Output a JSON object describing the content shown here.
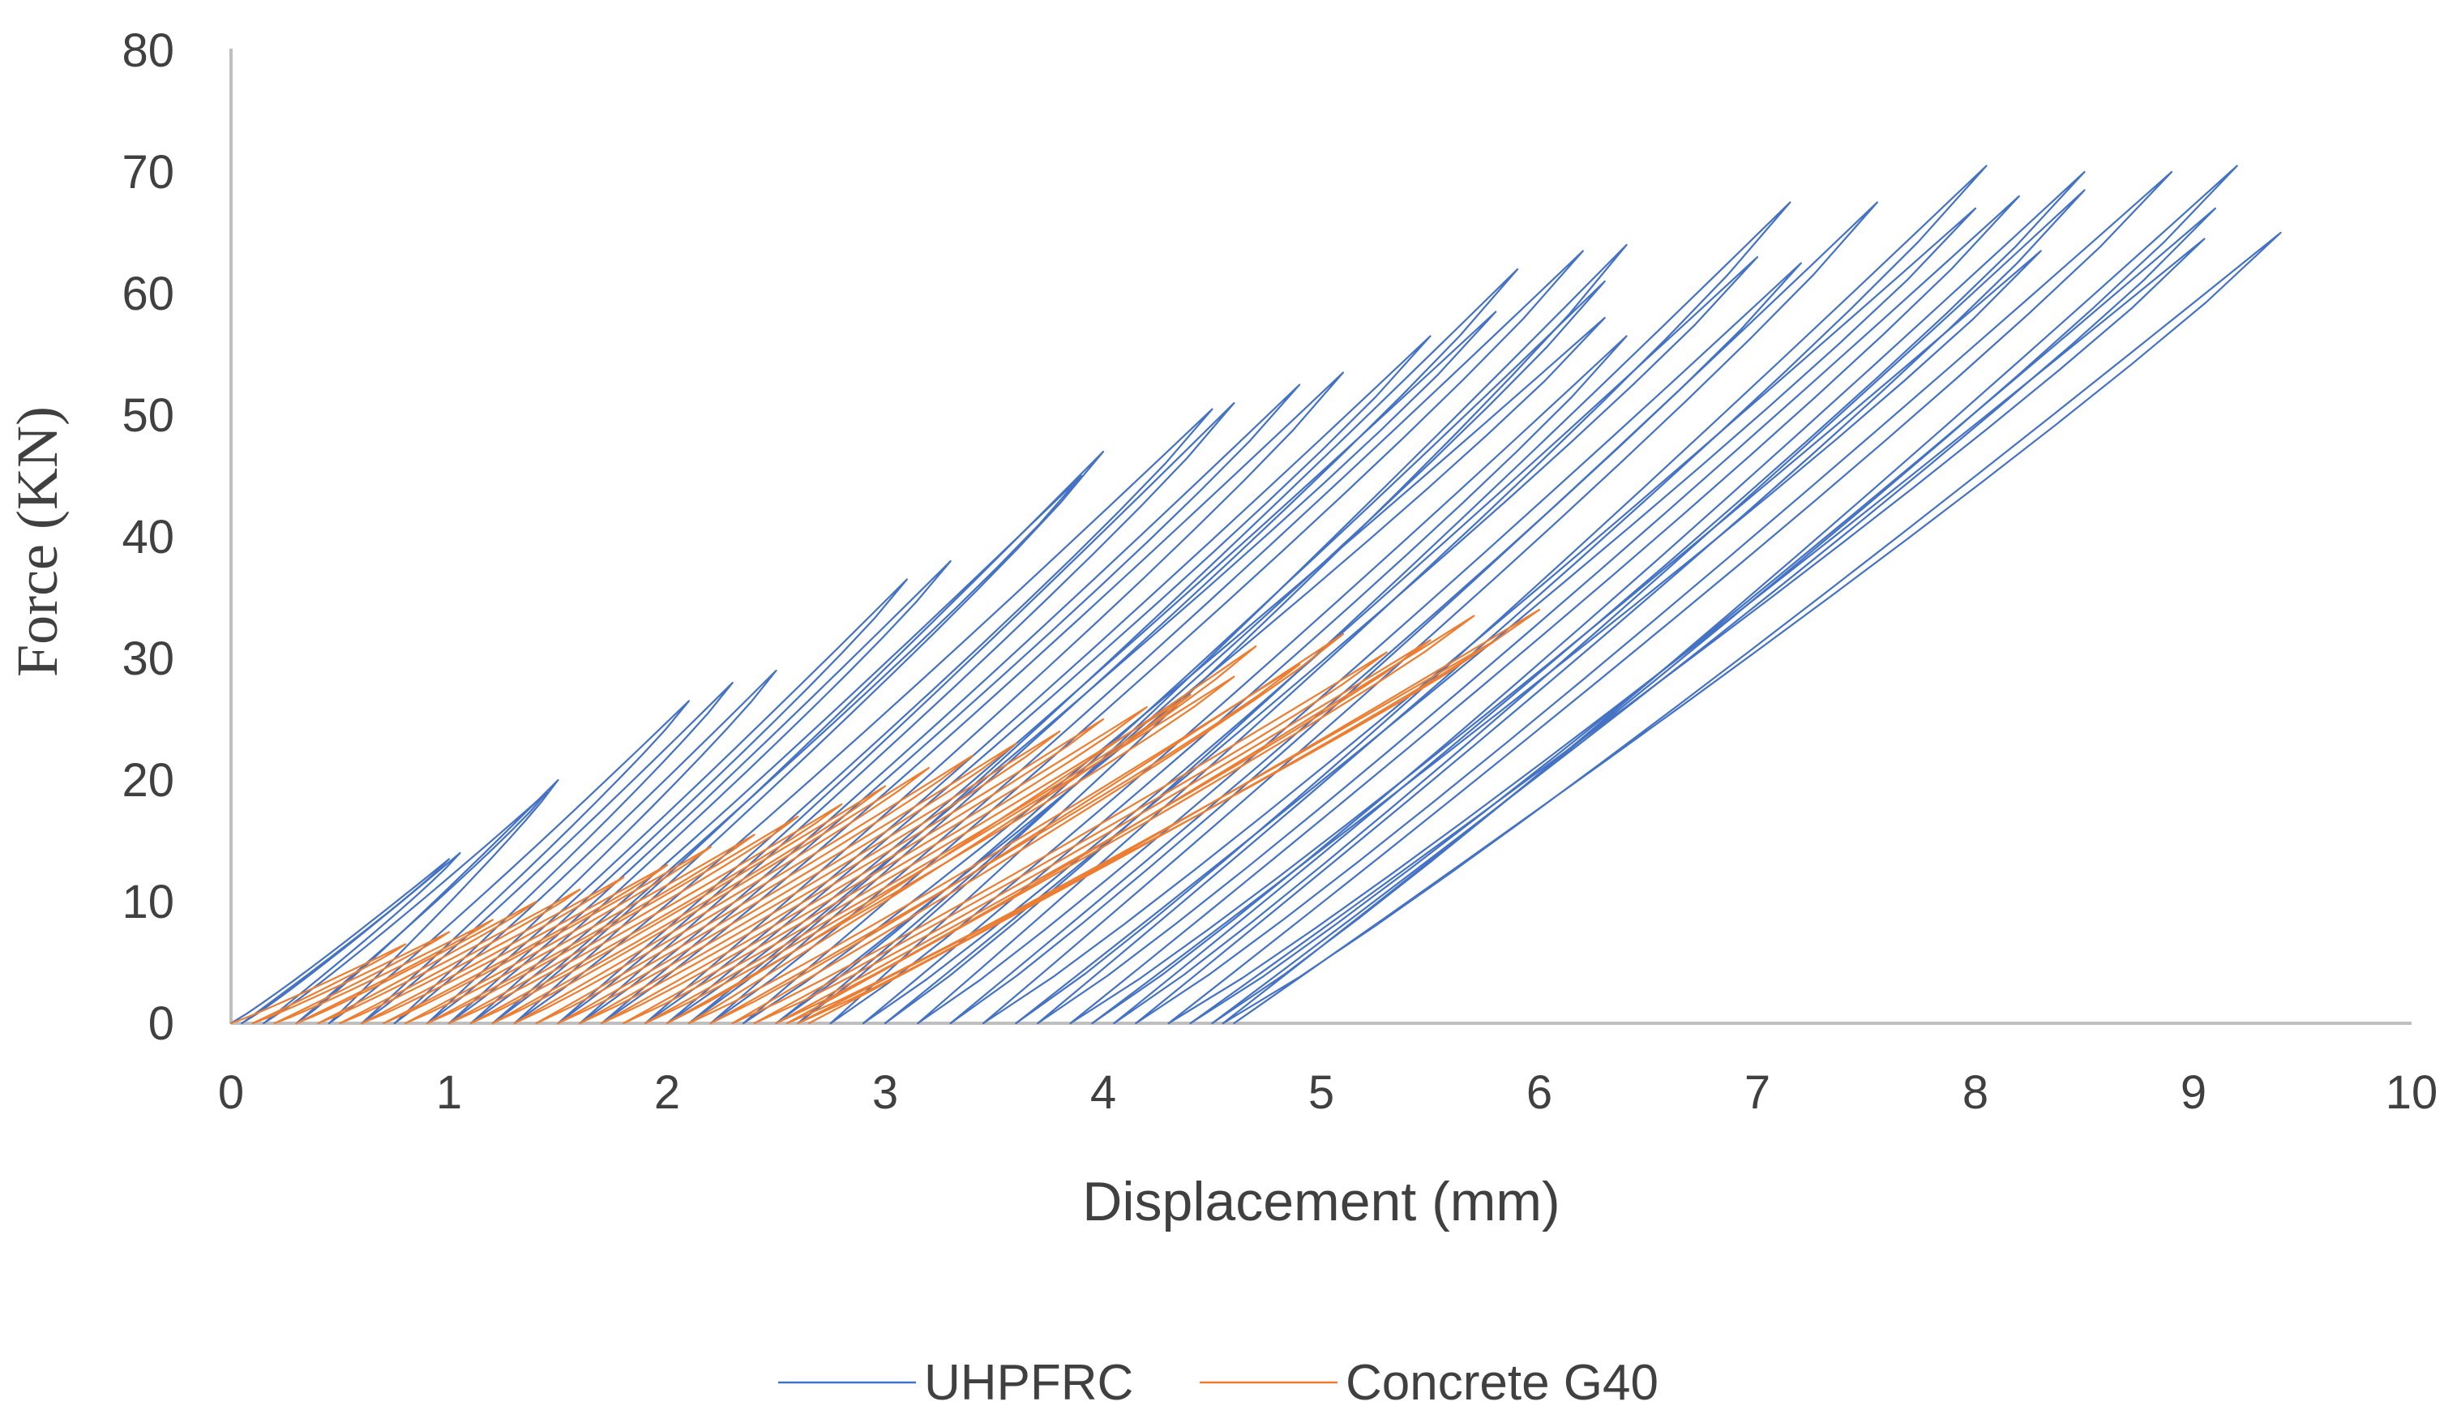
{
  "chart_data": {
    "type": "line",
    "title": "",
    "xlabel": "Displacement (mm)",
    "ylabel": "Force (KN)",
    "xlim": [
      0,
      10
    ],
    "ylim": [
      0,
      80
    ],
    "xticks": [
      "0",
      "1",
      "2",
      "3",
      "4",
      "5",
      "6",
      "7",
      "8",
      "9",
      "10"
    ],
    "yticks": [
      "0",
      "10",
      "20",
      "30",
      "40",
      "50",
      "60",
      "70",
      "80"
    ],
    "grid": false,
    "legend_position": "bottom",
    "series": [
      {
        "name": "UHPFRC",
        "color": "#4472C4",
        "cycles": [
          {
            "peak_x": 1.0,
            "peak_y": 13.5,
            "residual_x": 0.05
          },
          {
            "peak_x": 1.05,
            "peak_y": 14.0,
            "residual_x": 0.15
          },
          {
            "peak_x": 1.45,
            "peak_y": 19.0,
            "residual_x": 0.3
          },
          {
            "peak_x": 1.5,
            "peak_y": 20.0,
            "residual_x": 0.45
          },
          {
            "peak_x": 2.1,
            "peak_y": 26.5,
            "residual_x": 0.6
          },
          {
            "peak_x": 2.3,
            "peak_y": 28.0,
            "residual_x": 0.75
          },
          {
            "peak_x": 2.5,
            "peak_y": 29.0,
            "residual_x": 0.9
          },
          {
            "peak_x": 3.1,
            "peak_y": 36.5,
            "residual_x": 1.0
          },
          {
            "peak_x": 3.3,
            "peak_y": 38.0,
            "residual_x": 1.1
          },
          {
            "peak_x": 3.9,
            "peak_y": 45.0,
            "residual_x": 1.2
          },
          {
            "peak_x": 4.0,
            "peak_y": 47.0,
            "residual_x": 1.3
          },
          {
            "peak_x": 4.5,
            "peak_y": 50.5,
            "residual_x": 1.5
          },
          {
            "peak_x": 4.6,
            "peak_y": 51.0,
            "residual_x": 1.6
          },
          {
            "peak_x": 4.9,
            "peak_y": 52.5,
            "residual_x": 1.7
          },
          {
            "peak_x": 5.1,
            "peak_y": 53.5,
            "residual_x": 1.9
          },
          {
            "peak_x": 5.5,
            "peak_y": 56.5,
            "residual_x": 2.0
          },
          {
            "peak_x": 5.8,
            "peak_y": 58.5,
            "residual_x": 2.1
          },
          {
            "peak_x": 5.9,
            "peak_y": 62.0,
            "residual_x": 2.2
          },
          {
            "peak_x": 6.2,
            "peak_y": 63.5,
            "residual_x": 2.35
          },
          {
            "peak_x": 6.3,
            "peak_y": 58.0,
            "residual_x": 2.5
          },
          {
            "peak_x": 6.3,
            "peak_y": 61.0,
            "residual_x": 2.6
          },
          {
            "peak_x": 6.4,
            "peak_y": 64.0,
            "residual_x": 2.75
          },
          {
            "peak_x": 6.4,
            "peak_y": 56.5,
            "residual_x": 2.9
          },
          {
            "peak_x": 7.0,
            "peak_y": 63.0,
            "residual_x": 3.0
          },
          {
            "peak_x": 7.15,
            "peak_y": 67.5,
            "residual_x": 3.15
          },
          {
            "peak_x": 7.2,
            "peak_y": 62.5,
            "residual_x": 3.3
          },
          {
            "peak_x": 7.55,
            "peak_y": 67.5,
            "residual_x": 3.45
          },
          {
            "peak_x": 8.0,
            "peak_y": 67.0,
            "residual_x": 3.6
          },
          {
            "peak_x": 8.05,
            "peak_y": 70.5,
            "residual_x": 3.7
          },
          {
            "peak_x": 8.2,
            "peak_y": 68.0,
            "residual_x": 3.85
          },
          {
            "peak_x": 8.3,
            "peak_y": 63.5,
            "residual_x": 3.95
          },
          {
            "peak_x": 8.5,
            "peak_y": 70.0,
            "residual_x": 4.05
          },
          {
            "peak_x": 8.5,
            "peak_y": 68.5,
            "residual_x": 4.15
          },
          {
            "peak_x": 8.9,
            "peak_y": 70.0,
            "residual_x": 4.3
          },
          {
            "peak_x": 9.05,
            "peak_y": 64.5,
            "residual_x": 4.4
          },
          {
            "peak_x": 9.1,
            "peak_y": 67.0,
            "residual_x": 4.5
          },
          {
            "peak_x": 9.2,
            "peak_y": 70.5,
            "residual_x": 4.55
          },
          {
            "peak_x": 9.4,
            "peak_y": 65.0,
            "residual_x": 4.6
          }
        ]
      },
      {
        "name": "Concrete G40",
        "color": "#ED7D31",
        "cycles": [
          {
            "peak_x": 0.8,
            "peak_y": 6.5,
            "residual_x": 0.1
          },
          {
            "peak_x": 1.0,
            "peak_y": 7.5,
            "residual_x": 0.2
          },
          {
            "peak_x": 1.2,
            "peak_y": 8.5,
            "residual_x": 0.3
          },
          {
            "peak_x": 1.4,
            "peak_y": 10.0,
            "residual_x": 0.4
          },
          {
            "peak_x": 1.6,
            "peak_y": 11.0,
            "residual_x": 0.5
          },
          {
            "peak_x": 1.8,
            "peak_y": 12.0,
            "residual_x": 0.6
          },
          {
            "peak_x": 2.0,
            "peak_y": 13.0,
            "residual_x": 0.7
          },
          {
            "peak_x": 2.2,
            "peak_y": 14.5,
            "residual_x": 0.8
          },
          {
            "peak_x": 2.4,
            "peak_y": 15.5,
            "residual_x": 0.9
          },
          {
            "peak_x": 2.6,
            "peak_y": 17.0,
            "residual_x": 1.0
          },
          {
            "peak_x": 2.8,
            "peak_y": 18.0,
            "residual_x": 1.1
          },
          {
            "peak_x": 3.0,
            "peak_y": 19.5,
            "residual_x": 1.2
          },
          {
            "peak_x": 3.2,
            "peak_y": 21.0,
            "residual_x": 1.3
          },
          {
            "peak_x": 3.4,
            "peak_y": 22.0,
            "residual_x": 1.4
          },
          {
            "peak_x": 3.6,
            "peak_y": 23.0,
            "residual_x": 1.5
          },
          {
            "peak_x": 3.8,
            "peak_y": 24.0,
            "residual_x": 1.6
          },
          {
            "peak_x": 4.0,
            "peak_y": 25.0,
            "residual_x": 1.7
          },
          {
            "peak_x": 4.2,
            "peak_y": 26.0,
            "residual_x": 1.8
          },
          {
            "peak_x": 4.4,
            "peak_y": 27.0,
            "residual_x": 1.9
          },
          {
            "peak_x": 4.6,
            "peak_y": 28.5,
            "residual_x": 2.0
          },
          {
            "peak_x": 4.7,
            "peak_y": 31.0,
            "residual_x": 2.1
          },
          {
            "peak_x": 4.9,
            "peak_y": 29.5,
            "residual_x": 2.2
          },
          {
            "peak_x": 5.1,
            "peak_y": 32.0,
            "residual_x": 2.3
          },
          {
            "peak_x": 5.3,
            "peak_y": 30.5,
            "residual_x": 2.4
          },
          {
            "peak_x": 5.5,
            "peak_y": 31.5,
            "residual_x": 2.5
          },
          {
            "peak_x": 5.7,
            "peak_y": 33.5,
            "residual_x": 2.55
          },
          {
            "peak_x": 5.8,
            "peak_y": 31.5,
            "residual_x": 2.6
          },
          {
            "peak_x": 6.0,
            "peak_y": 34.0,
            "residual_x": 2.65
          }
        ]
      }
    ]
  }
}
